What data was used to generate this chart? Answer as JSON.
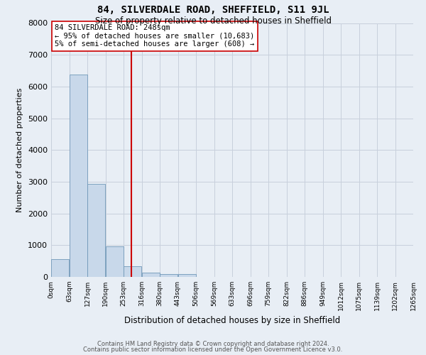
{
  "title1": "84, SILVERDALE ROAD, SHEFFIELD, S11 9JL",
  "title2": "Size of property relative to detached houses in Sheffield",
  "xlabel": "Distribution of detached houses by size in Sheffield",
  "ylabel": "Number of detached properties",
  "bin_labels": [
    "0sqm",
    "63sqm",
    "127sqm",
    "190sqm",
    "253sqm",
    "316sqm",
    "380sqm",
    "443sqm",
    "506sqm",
    "569sqm",
    "633sqm",
    "696sqm",
    "759sqm",
    "822sqm",
    "886sqm",
    "949sqm",
    "1012sqm",
    "1075sqm",
    "1139sqm",
    "1202sqm",
    "1265sqm"
  ],
  "bar_heights": [
    570,
    6370,
    2940,
    960,
    340,
    140,
    100,
    80,
    0,
    0,
    0,
    0,
    0,
    0,
    0,
    0,
    0,
    0,
    0,
    0
  ],
  "bar_color": "#c8d8ea",
  "bar_edge_color": "#7098b8",
  "vline_x_bin": 3.97,
  "vline_color": "#cc0000",
  "annotation_line1": "84 SILVERDALE ROAD: 248sqm",
  "annotation_line2": "← 95% of detached houses are smaller (10,683)",
  "annotation_line3": "5% of semi-detached houses are larger (608) →",
  "annotation_box_color": "#ffffff",
  "annotation_box_edge": "#cc0000",
  "ylim": [
    0,
    8000
  ],
  "yticks": [
    0,
    1000,
    2000,
    3000,
    4000,
    5000,
    6000,
    7000,
    8000
  ],
  "grid_color": "#c8d0dc",
  "bg_color": "#e8eef5",
  "footer1": "Contains HM Land Registry data © Crown copyright and database right 2024.",
  "footer2": "Contains public sector information licensed under the Open Government Licence v3.0."
}
